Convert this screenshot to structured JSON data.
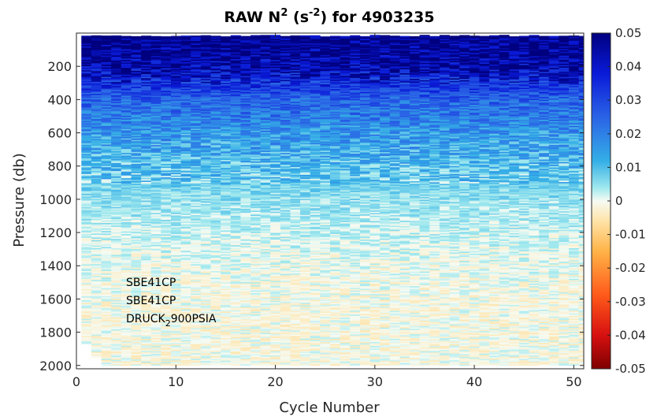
{
  "chart_data": {
    "type": "heatmap",
    "title_main": "RAW N",
    "title_sup1": "2",
    "title_mid": " (s",
    "title_sup2": "-2",
    "title_end": ") for 4903235",
    "xlabel": "Cycle Number",
    "ylabel": "Pressure (db)",
    "xlim": [
      0,
      51
    ],
    "ylim": [
      0,
      2020
    ],
    "y_reversed": true,
    "x_ticks": [
      "0",
      "10",
      "20",
      "30",
      "40",
      "50"
    ],
    "x_tick_values": [
      0,
      10,
      20,
      30,
      40,
      50
    ],
    "y_ticks": [
      "200",
      "400",
      "600",
      "800",
      "1000",
      "1200",
      "1400",
      "1600",
      "1800",
      "2000"
    ],
    "y_tick_values": [
      200,
      400,
      600,
      800,
      1000,
      1200,
      1400,
      1600,
      1800,
      2000
    ],
    "colorbar": {
      "clim": [
        -0.05,
        0.05
      ],
      "colormap": "jet-blue-white-red",
      "ticks": [
        "0.05",
        "0.04",
        "0.03",
        "0.02",
        "0.01",
        "0",
        "-0.01",
        "-0.02",
        "-0.03",
        "-0.04",
        "-0.05"
      ],
      "tick_values": [
        0.05,
        0.04,
        0.03,
        0.02,
        0.01,
        0,
        -0.01,
        -0.02,
        -0.03,
        -0.04,
        -0.05
      ]
    },
    "annotations": [
      {
        "text": "SBE41CP"
      },
      {
        "text": "SBE41CP"
      },
      {
        "text_main": "DRUCK",
        "text_sub": "2",
        "text_end": "900PSIA"
      }
    ],
    "cycles": [
      1,
      51
    ],
    "profile_depth_max": 2000,
    "approx_profile": [
      {
        "pressure": 50,
        "n2": 0.05
      },
      {
        "pressure": 200,
        "n2": 0.045
      },
      {
        "pressure": 400,
        "n2": 0.025
      },
      {
        "pressure": 600,
        "n2": 0.016
      },
      {
        "pressure": 800,
        "n2": 0.01
      },
      {
        "pressure": 1000,
        "n2": 0.005
      },
      {
        "pressure": 1200,
        "n2": 0.002
      },
      {
        "pressure": 1400,
        "n2": 0.0
      },
      {
        "pressure": 1600,
        "n2": -0.001
      },
      {
        "pressure": 2000,
        "n2": -0.001
      }
    ]
  }
}
